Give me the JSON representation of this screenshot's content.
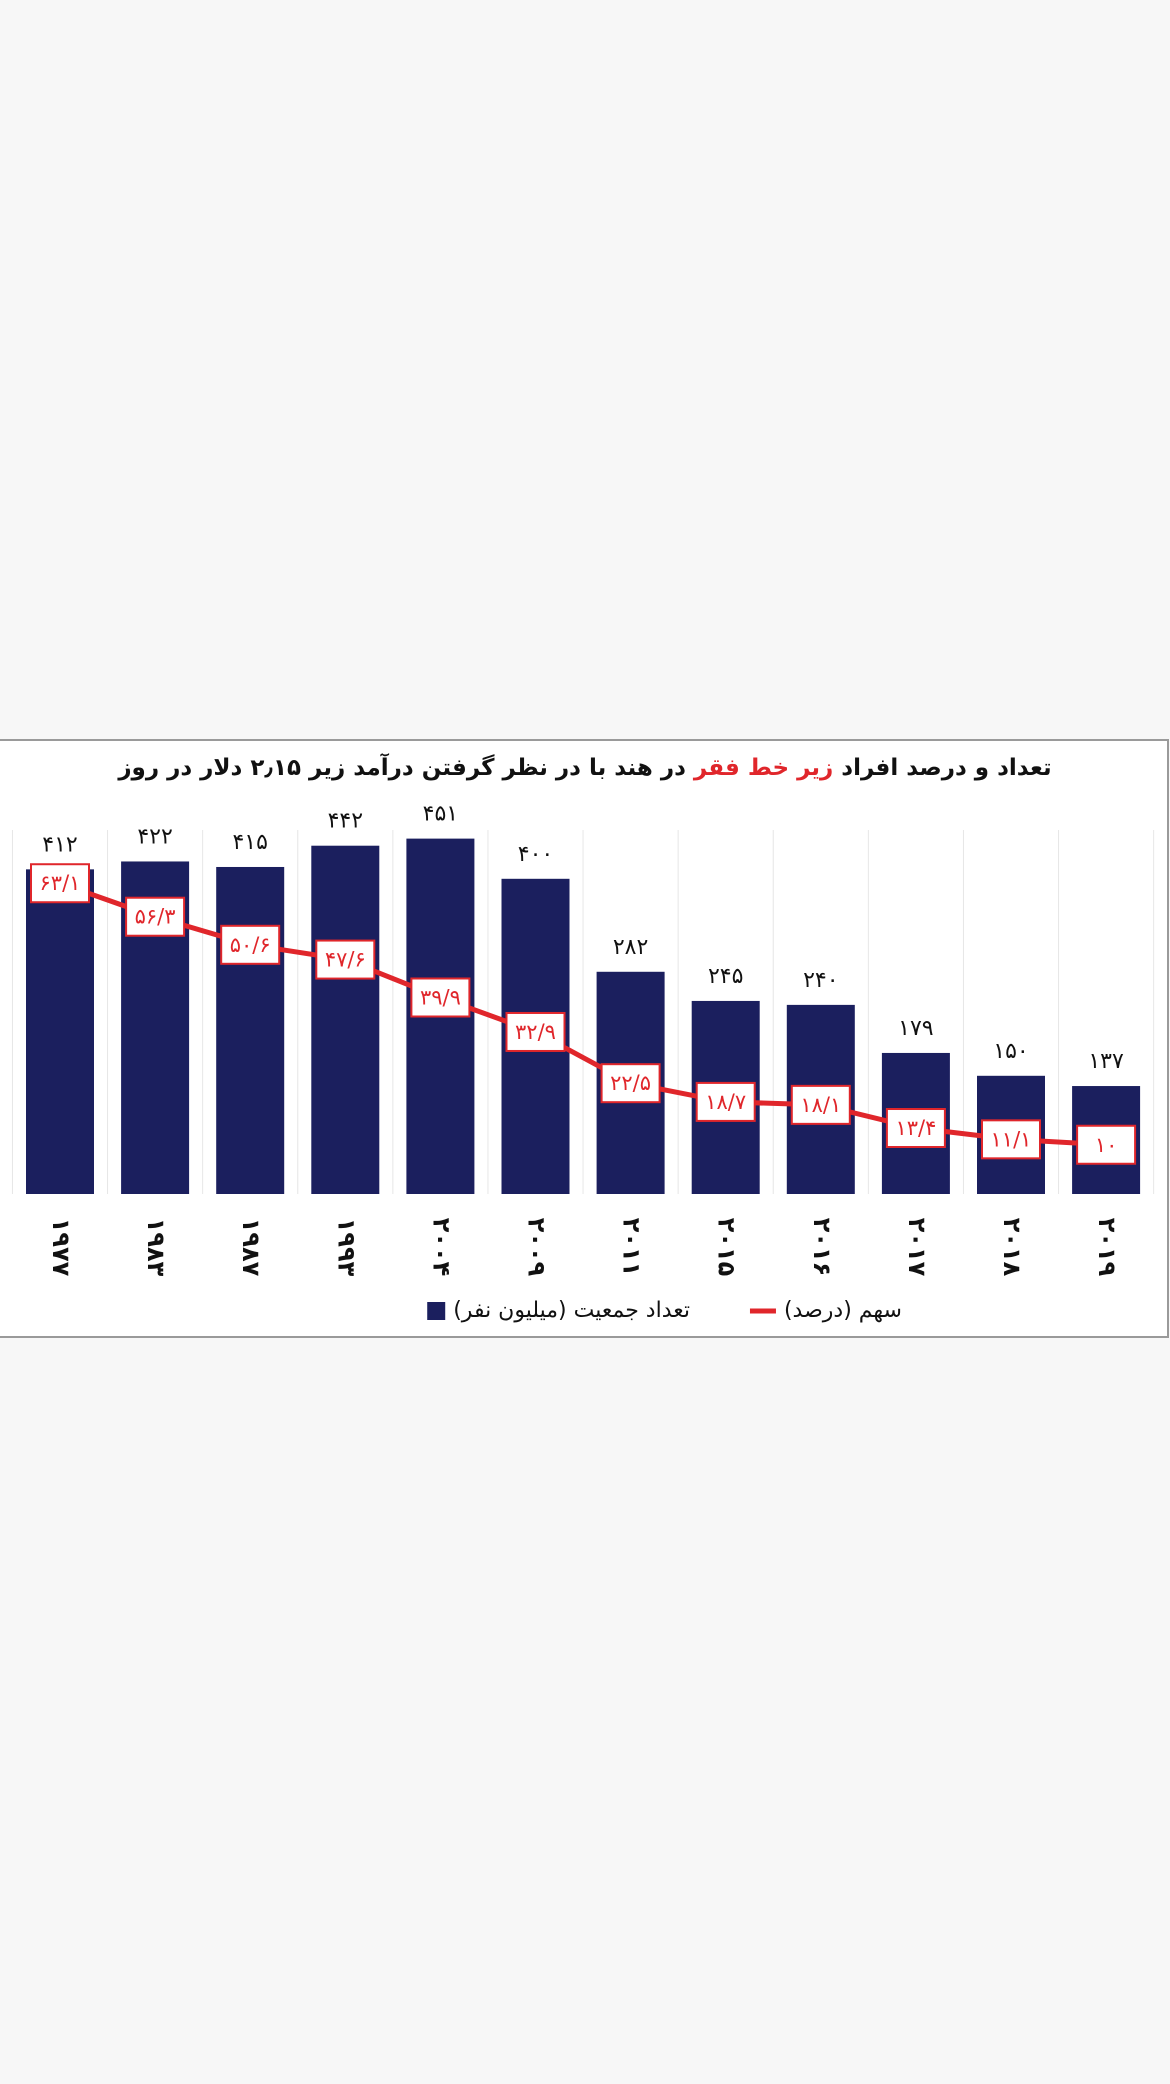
{
  "chart_data": {
    "type": "bar-line",
    "title": [
      {
        "text": "تعداد و درصد افراد",
        "color": "#111111"
      },
      {
        "text": "زیر خط فقر",
        "color": "#e0262b"
      },
      {
        "text": "در هند با در نظر گرفتن درآمد زیر ۲٫۱۵ دلار در روز",
        "color": "#111111"
      }
    ],
    "categories": [
      "۱۹۷۷",
      "۱۹۸۳",
      "۱۹۸۷",
      "۱۹۹۳",
      "۲۰۰۴",
      "۲۰۰۹",
      "۲۰۱۱",
      "۲۰۱۵",
      "۲۰۱۶",
      "۲۰۱۷",
      "۲۰۱۸",
      "۲۰۱۹"
    ],
    "series": [
      {
        "name": "تعداد جمعیت (میلیون نفر)",
        "color": "#1b1f5e",
        "type": "bar",
        "values": [
          412,
          422,
          415,
          442,
          451,
          400,
          282,
          245,
          240,
          179,
          150,
          137
        ],
        "value_labels": [
          "۴۱۲",
          "۴۲۲",
          "۴۱۵",
          "۴۴۲",
          "۴۵۱",
          "۴۰۰",
          "۲۸۲",
          "۲۴۵",
          "۲۴۰",
          "۱۷۹",
          "۱۵۰",
          "۱۳۷"
        ]
      },
      {
        "name": "سهم (درصد)",
        "color": "#e0262b",
        "type": "line",
        "axis": "y2",
        "values": [
          63.1,
          56.3,
          50.6,
          47.6,
          39.9,
          32.9,
          22.5,
          18.7,
          18.1,
          13.4,
          11.1,
          10
        ],
        "value_labels": [
          "۶۳/۱",
          "۵۶/۳",
          "۵۰/۶",
          "۴۷/۶",
          "۳۹/۹",
          "۳۲/۹",
          "۲۲/۵",
          "۱۸/۷",
          "۱۸/۱",
          "۱۳/۴",
          "۱۱/۱",
          "۱۰"
        ]
      }
    ],
    "ylim": [
      0,
      500
    ],
    "y2lim": [
      0,
      80
    ],
    "grid": true,
    "legend": "bottom"
  }
}
